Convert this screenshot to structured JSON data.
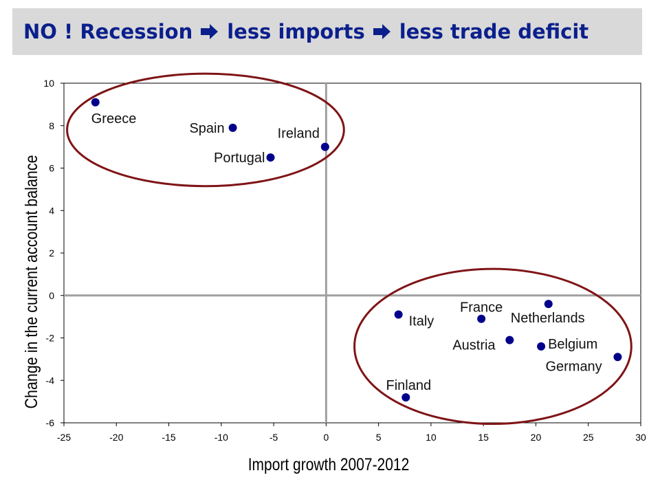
{
  "title": {
    "part1": "NO ! Recession",
    "part2": "less imports",
    "part3": "less trade deficit",
    "arrow_icon": "right-arrow-icon",
    "color": "#0b1f8c",
    "background": "#d9d9d9"
  },
  "chart_data": {
    "type": "scatter",
    "xlabel": "Import growth 2007-2012",
    "ylabel": "Change in the current account balance",
    "xlim": [
      -25,
      30
    ],
    "ylim": [
      -6,
      10
    ],
    "xticks": [
      -25,
      -20,
      -15,
      -10,
      -5,
      0,
      5,
      10,
      15,
      20,
      25,
      30
    ],
    "yticks": [
      -6,
      -4,
      -2,
      0,
      2,
      4,
      6,
      8,
      10
    ],
    "grid": false,
    "point_color": "#00008b",
    "zero_line_color": "#a0a0a0",
    "ellipse_color": "#7f1416",
    "points": [
      {
        "label": "Greece",
        "x": -22.0,
        "y": 9.1
      },
      {
        "label": "Spain",
        "x": -8.9,
        "y": 7.9
      },
      {
        "label": "Portugal",
        "x": -5.3,
        "y": 6.5
      },
      {
        "label": "Ireland",
        "x": -0.1,
        "y": 7.0
      },
      {
        "label": "Italy",
        "x": 6.9,
        "y": -0.9
      },
      {
        "label": "France",
        "x": 14.8,
        "y": -1.1
      },
      {
        "label": "Netherlands",
        "x": 21.2,
        "y": -0.4
      },
      {
        "label": "Austria",
        "x": 17.5,
        "y": -2.1
      },
      {
        "label": "Belgium",
        "x": 20.5,
        "y": -2.4
      },
      {
        "label": "Germany",
        "x": 27.8,
        "y": -2.9
      },
      {
        "label": "Finland",
        "x": 7.6,
        "y": -4.8
      }
    ],
    "ellipses": [
      {
        "name": "deficit-countries",
        "cx": -11.5,
        "cy": 7.8,
        "rx": 13.2,
        "ry": 2.65
      },
      {
        "name": "surplus-countries",
        "cx": 15.9,
        "cy": -2.4,
        "rx": 13.2,
        "ry": 3.65
      }
    ]
  }
}
